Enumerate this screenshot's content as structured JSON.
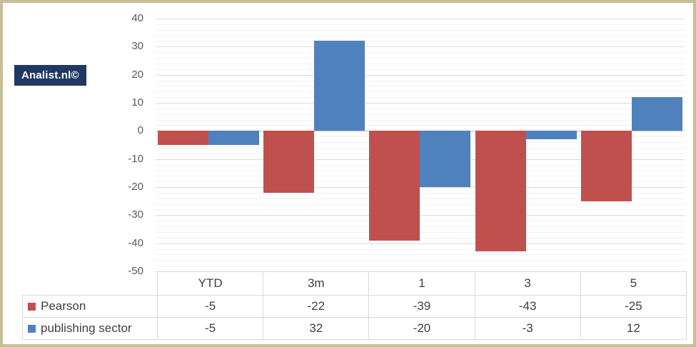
{
  "branding": {
    "logo_text": "Analist.nl©",
    "logo_bg": "#1F3864"
  },
  "colors": {
    "frame": "#C8BE97",
    "grid_minor": "#F3F2F1",
    "grid_major": "#DCDBD9",
    "zero_line": "#C3C1BF",
    "axis_text": "#595959",
    "table_text": "#3F3F3F",
    "table_border": "#D9D9D9"
  },
  "chart_data": {
    "type": "bar",
    "categories": [
      "YTD",
      "3m",
      "1",
      "3",
      "5"
    ],
    "series": [
      {
        "name": "Pearson",
        "color": "#C0504D",
        "values": [
          -5,
          -22,
          -39,
          -43,
          -25
        ]
      },
      {
        "name": "publishing sector",
        "color": "#4F81BD",
        "values": [
          -5,
          32,
          -20,
          -3,
          12
        ]
      }
    ],
    "ylim": [
      -50,
      40
    ],
    "ytick_step": 10,
    "yticks": [
      40,
      30,
      20,
      10,
      0,
      -10,
      -20,
      -30,
      -40,
      -50
    ],
    "minor_grid_step": 2,
    "grid": true,
    "legend_position": "table-left"
  },
  "table": {
    "corner_label": "",
    "columns": [
      "YTD",
      "3m",
      "1",
      "3",
      "5"
    ],
    "rows": [
      {
        "label": "Pearson",
        "values": [
          "-5",
          "-22",
          "-39",
          "-43",
          "-25"
        ]
      },
      {
        "label": "publishing sector",
        "values": [
          "-5",
          "32",
          "-20",
          "-3",
          "12"
        ]
      }
    ]
  }
}
